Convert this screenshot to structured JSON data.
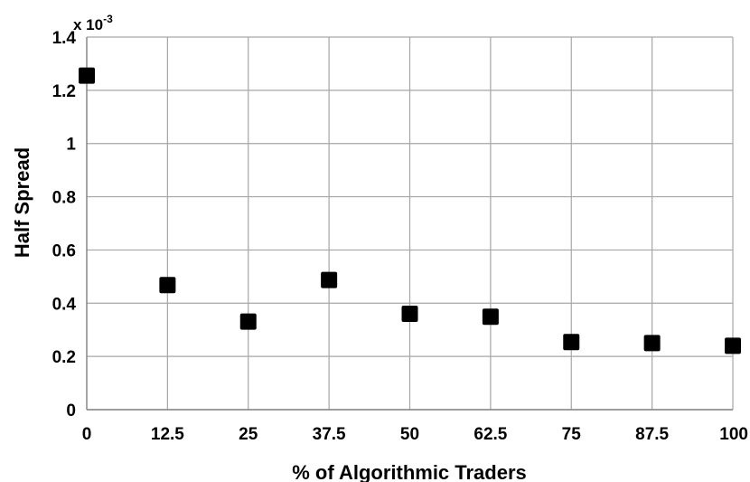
{
  "chart_data": {
    "type": "scatter",
    "title": "",
    "xlabel": "% of Algorithmic Traders",
    "ylabel": "Half Spread",
    "y_multiplier": {
      "base": "x 10",
      "exponent": "-3"
    },
    "xlim": [
      0,
      100
    ],
    "ylim": [
      0,
      1.4
    ],
    "x_ticks": [
      "0",
      "12.5",
      "25",
      "37.5",
      "50",
      "62.5",
      "75",
      "87.5",
      "100"
    ],
    "y_ticks": [
      "0",
      "0.2",
      "0.4",
      "0.6",
      "0.8",
      "1",
      "1.2",
      "1.4"
    ],
    "grid": true,
    "marker": "square",
    "marker_color": "#000000",
    "series": [
      {
        "x": [
          0,
          12.5,
          25,
          37.5,
          50,
          62.5,
          75,
          87.5,
          100
        ],
        "y": [
          1.255,
          0.468,
          0.331,
          0.487,
          0.36,
          0.349,
          0.254,
          0.25,
          0.24
        ]
      }
    ]
  }
}
